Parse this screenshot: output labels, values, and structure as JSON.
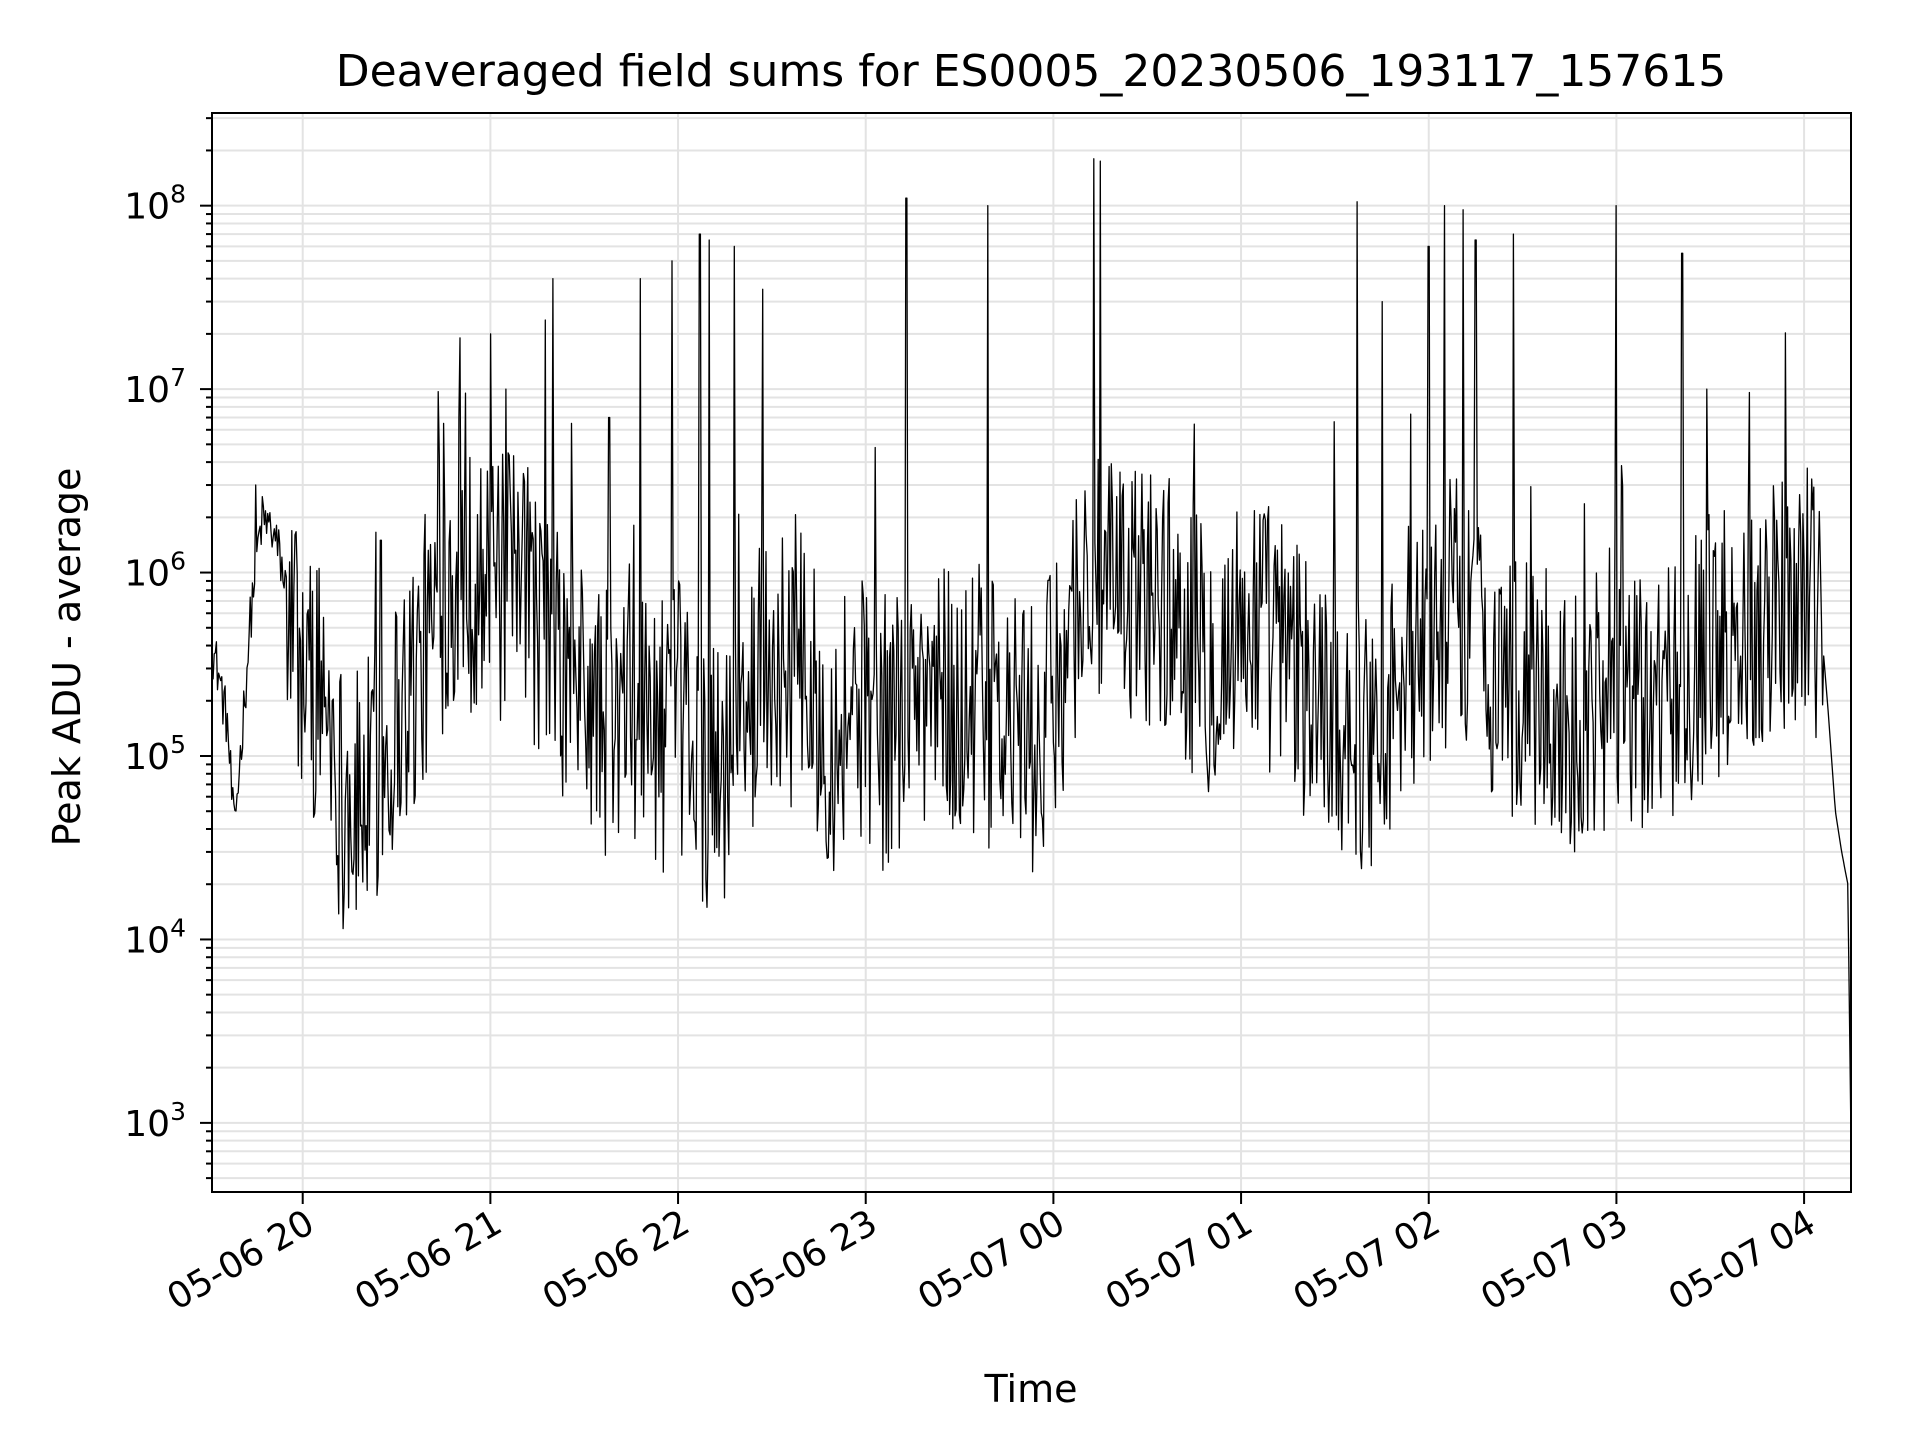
{
  "chart_data": {
    "type": "line",
    "title": "Deaveraged field sums for ES0005_20230506_193117_157615",
    "xlabel": "Time",
    "ylabel": "Peak ADU - average",
    "yscale": "log",
    "grid": true,
    "legend": "none",
    "xlim": [
      "2023-05-06 19:31",
      "2023-05-07 04:15"
    ],
    "ylim": [
      420,
      320000000
    ],
    "x_ticks": [
      "05-06 20",
      "05-06 21",
      "05-06 22",
      "05-06 23",
      "05-07 00",
      "05-07 01",
      "05-07 02",
      "05-07 03",
      "05-07 04"
    ],
    "y_ticks": [
      {
        "base": "10",
        "exp": "3",
        "value": 1000
      },
      {
        "base": "10",
        "exp": "4",
        "value": 10000
      },
      {
        "base": "10",
        "exp": "5",
        "value": 100000
      },
      {
        "base": "10",
        "exp": "6",
        "value": 1000000
      },
      {
        "base": "10",
        "exp": "7",
        "value": 10000000
      },
      {
        "base": "10",
        "exp": "8",
        "value": 100000000
      }
    ],
    "series": [
      {
        "color": "#000000",
        "x": [
          "2023-05-06 19:31",
          "2023-05-06 19:33",
          "2023-05-06 19:36",
          "2023-05-06 19:38",
          "2023-05-06 19:40",
          "2023-05-06 19:43",
          "2023-05-06 19:45",
          "2023-05-06 19:47",
          "2023-05-06 19:50",
          "2023-05-06 19:53",
          "2023-05-06 19:56",
          "2023-05-06 20:00",
          "2023-05-06 20:04",
          "2023-05-06 20:08",
          "2023-05-06 20:12",
          "2023-05-06 20:16",
          "2023-05-06 20:20",
          "2023-05-06 20:24",
          "2023-05-06 20:28",
          "2023-05-06 20:32",
          "2023-05-06 20:36",
          "2023-05-06 20:40",
          "2023-05-06 20:44",
          "2023-05-06 20:48",
          "2023-05-06 20:52",
          "2023-05-06 20:56",
          "2023-05-06 21:00",
          "2023-05-06 21:05",
          "2023-05-06 21:10",
          "2023-05-06 21:15",
          "2023-05-06 21:20",
          "2023-05-06 21:25",
          "2023-05-06 21:30",
          "2023-05-06 21:35",
          "2023-05-06 21:40",
          "2023-05-06 21:45",
          "2023-05-06 21:50",
          "2023-05-06 21:55",
          "2023-05-06 22:00",
          "2023-05-06 22:05",
          "2023-05-06 22:10",
          "2023-05-06 22:15",
          "2023-05-06 22:20",
          "2023-05-06 22:25",
          "2023-05-06 22:30",
          "2023-05-06 22:35",
          "2023-05-06 22:40",
          "2023-05-06 22:45",
          "2023-05-06 22:50",
          "2023-05-06 22:55",
          "2023-05-06 23:00",
          "2023-05-06 23:05",
          "2023-05-06 23:10",
          "2023-05-06 23:15",
          "2023-05-06 23:20",
          "2023-05-06 23:25",
          "2023-05-06 23:30",
          "2023-05-06 23:35",
          "2023-05-06 23:40",
          "2023-05-06 23:45",
          "2023-05-06 23:50",
          "2023-05-06 23:55",
          "2023-05-07 00:00",
          "2023-05-07 00:05",
          "2023-05-07 00:10",
          "2023-05-07 00:15",
          "2023-05-07 00:20",
          "2023-05-07 00:25",
          "2023-05-07 00:30",
          "2023-05-07 00:35",
          "2023-05-07 00:40",
          "2023-05-07 00:45",
          "2023-05-07 00:50",
          "2023-05-07 00:55",
          "2023-05-07 01:00",
          "2023-05-07 01:05",
          "2023-05-07 01:10",
          "2023-05-07 01:15",
          "2023-05-07 01:20",
          "2023-05-07 01:25",
          "2023-05-07 01:30",
          "2023-05-07 01:35",
          "2023-05-07 01:40",
          "2023-05-07 01:45",
          "2023-05-07 01:50",
          "2023-05-07 01:55",
          "2023-05-07 02:00",
          "2023-05-07 02:05",
          "2023-05-07 02:10",
          "2023-05-07 02:15",
          "2023-05-07 02:20",
          "2023-05-07 02:25",
          "2023-05-07 02:30",
          "2023-05-07 02:35",
          "2023-05-07 02:40",
          "2023-05-07 02:45",
          "2023-05-07 02:50",
          "2023-05-07 02:55",
          "2023-05-07 03:00",
          "2023-05-07 03:05",
          "2023-05-07 03:10",
          "2023-05-07 03:15",
          "2023-05-07 03:20",
          "2023-05-07 03:25",
          "2023-05-07 03:30",
          "2023-05-07 03:35",
          "2023-05-07 03:40",
          "2023-05-07 03:45",
          "2023-05-07 03:50",
          "2023-05-07 03:55",
          "2023-05-07 04:00",
          "2023-05-07 04:02",
          "2023-05-07 04:04",
          "2023-05-07 04:06",
          "2023-05-07 04:08",
          "2023-05-07 04:10",
          "2023-05-07 04:12",
          "2023-05-07 04:14",
          "2023-05-07 04:15"
        ],
        "y": [
          400000,
          300000,
          150000,
          40000,
          100000,
          500000,
          1200000,
          2000000,
          1800000,
          1200000,
          600000,
          350000,
          300000,
          250000,
          80000,
          60000,
          70000,
          100000,
          150000,
          250000,
          300000,
          500000,
          800000,
          1300000,
          1000000,
          1200000,
          800000,
          1000000,
          900000,
          700000,
          400000,
          300000,
          250000,
          200000,
          150000,
          250000,
          200000,
          150000,
          200000,
          120000,
          90000,
          100000,
          150000,
          300000,
          400000,
          350000,
          300000,
          200000,
          150000,
          250000,
          200000,
          150000,
          200000,
          250000,
          300000,
          250000,
          200000,
          250000,
          200000,
          150000,
          180000,
          120000,
          250000,
          600000,
          1000000,
          900000,
          800000,
          900000,
          1000000,
          800000,
          700000,
          500000,
          400000,
          450000,
          600000,
          700000,
          500000,
          400000,
          300000,
          250000,
          200000,
          180000,
          150000,
          200000,
          250000,
          350000,
          500000,
          700000,
          800000,
          600000,
          400000,
          300000,
          250000,
          250000,
          200000,
          180000,
          200000,
          250000,
          300000,
          200000,
          200000,
          250000,
          300000,
          400000,
          500000,
          500000,
          600000,
          700000,
          800000,
          900000,
          1000000,
          1100000,
          800000,
          400000,
          150000,
          50000,
          30000,
          20000,
          800
        ],
        "spikes": [
          {
            "x": "2023-05-06 19:45",
            "y": 3000000
          },
          {
            "x": "2023-05-06 20:25",
            "y": 1500000
          },
          {
            "x": "2023-05-06 20:45",
            "y": 6500000
          },
          {
            "x": "2023-05-06 20:52",
            "y": 9500000
          },
          {
            "x": "2023-05-06 21:00",
            "y": 20000000
          },
          {
            "x": "2023-05-06 21:05",
            "y": 10000000
          },
          {
            "x": "2023-05-06 21:20",
            "y": 40000000
          },
          {
            "x": "2023-05-06 21:38",
            "y": 7000000
          },
          {
            "x": "2023-05-06 21:48",
            "y": 40000000
          },
          {
            "x": "2023-05-06 21:58",
            "y": 50000000
          },
          {
            "x": "2023-05-06 22:07",
            "y": 70000000
          },
          {
            "x": "2023-05-06 22:10",
            "y": 65000000
          },
          {
            "x": "2023-05-06 22:18",
            "y": 60000000
          },
          {
            "x": "2023-05-06 22:27",
            "y": 35000000
          },
          {
            "x": "2023-05-06 23:13",
            "y": 110000000
          },
          {
            "x": "2023-05-06 23:39",
            "y": 100000000
          },
          {
            "x": "2023-05-07 00:13",
            "y": 180000000
          },
          {
            "x": "2023-05-07 00:15",
            "y": 175000000
          },
          {
            "x": "2023-05-07 01:37",
            "y": 105000000
          },
          {
            "x": "2023-05-07 01:45",
            "y": 30000000
          },
          {
            "x": "2023-05-07 02:00",
            "y": 60000000
          },
          {
            "x": "2023-05-07 02:05",
            "y": 100000000
          },
          {
            "x": "2023-05-07 02:11",
            "y": 95000000
          },
          {
            "x": "2023-05-07 02:15",
            "y": 65000000
          },
          {
            "x": "2023-05-07 02:27",
            "y": 70000000
          },
          {
            "x": "2023-05-07 03:00",
            "y": 100000000
          },
          {
            "x": "2023-05-07 03:21",
            "y": 55000000
          },
          {
            "x": "2023-05-07 03:29",
            "y": 10000000
          }
        ]
      }
    ]
  }
}
